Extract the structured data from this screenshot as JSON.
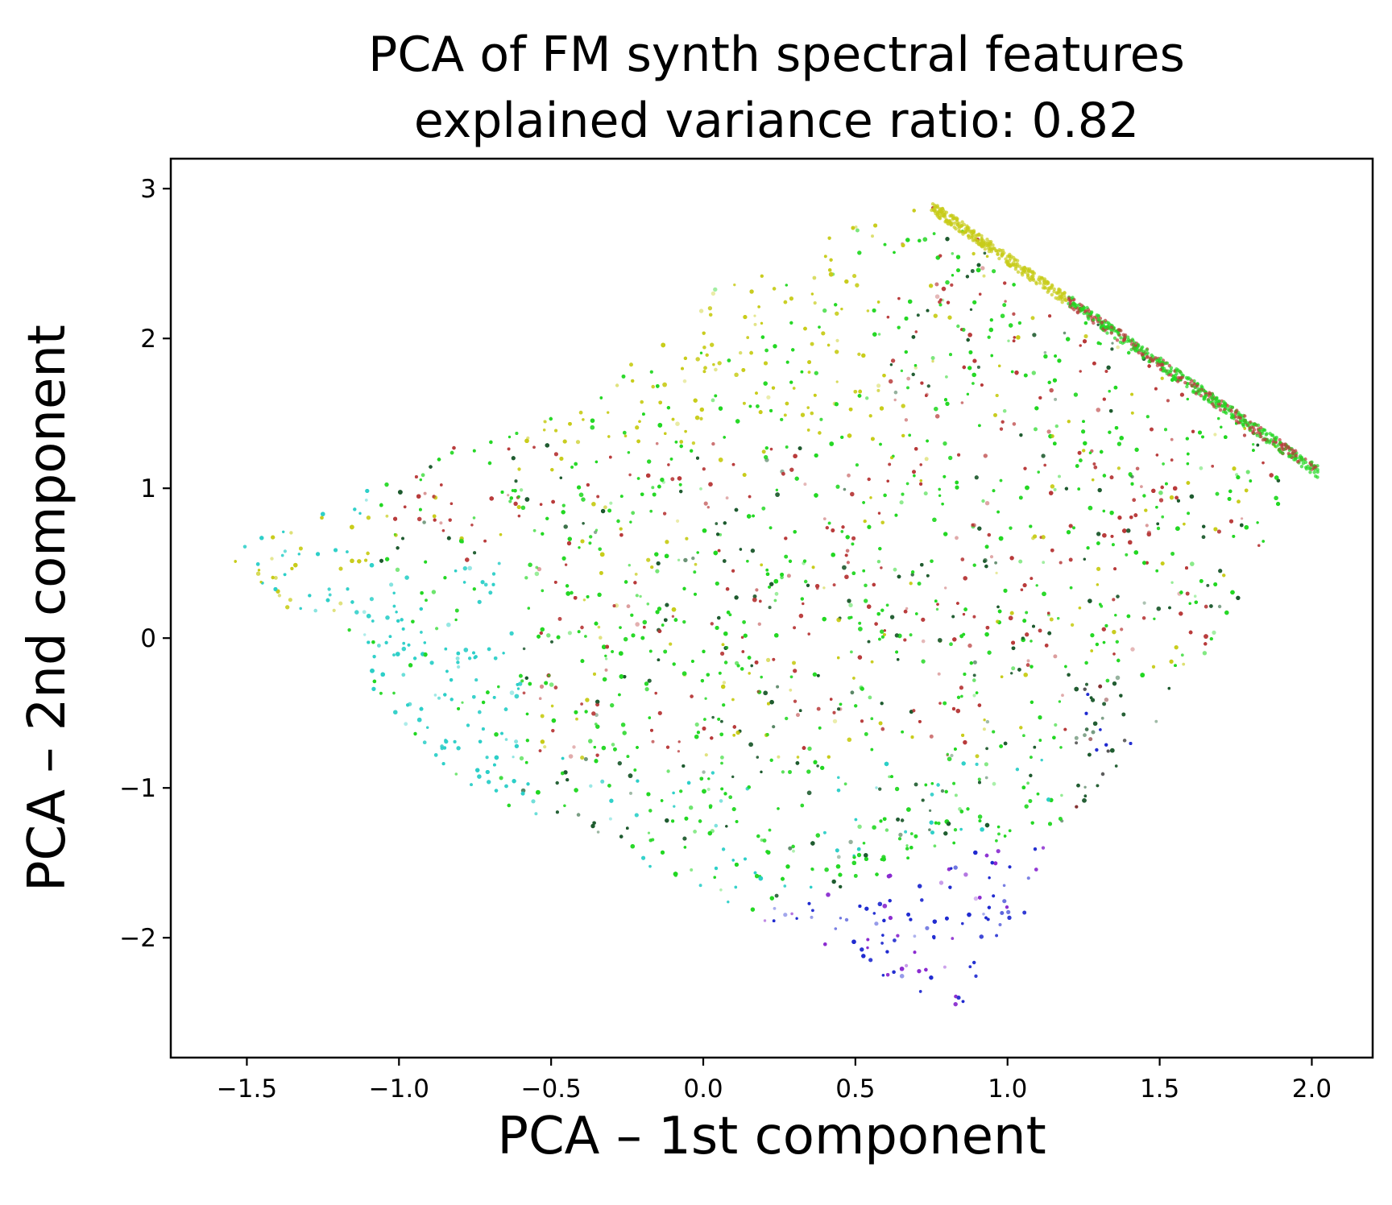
{
  "chart_data": {
    "type": "scatter",
    "title_lines": [
      "PCA of FM synth spectral features",
      "explained variance ratio: 0.82"
    ],
    "xlabel": "PCA – 1st component",
    "ylabel": "PCA – 2nd component",
    "xlim": [
      -1.75,
      2.2
    ],
    "ylim": [
      -2.8,
      3.2
    ],
    "xticks": [
      -1.5,
      -1.0,
      -0.5,
      0.0,
      0.5,
      1.0,
      1.5,
      2.0
    ],
    "xtick_labels": [
      "−1.5",
      "−1.0",
      "−0.5",
      "0.0",
      "0.5",
      "1.0",
      "1.5",
      "2.0"
    ],
    "yticks": [
      -2,
      -1,
      0,
      1,
      2,
      3
    ],
    "ytick_labels": [
      "−2",
      "−1",
      "0",
      "1",
      "2",
      "3"
    ],
    "grid": false,
    "legend": "none",
    "cloud_outline": [
      [
        -1.58,
        0.53
      ],
      [
        -1.45,
        0.7
      ],
      [
        -1.2,
        0.9
      ],
      [
        -1.0,
        1.1
      ],
      [
        -0.8,
        1.3
      ],
      [
        -0.4,
        1.6
      ],
      [
        -0.15,
        1.95
      ],
      [
        0.1,
        2.45
      ],
      [
        0.4,
        2.7
      ],
      [
        0.55,
        2.78
      ],
      [
        0.75,
        2.92
      ],
      [
        2.02,
        1.15
      ],
      [
        1.7,
        0.0
      ],
      [
        1.25,
        -1.2
      ],
      [
        0.85,
        -2.5
      ],
      [
        0.5,
        -2.2
      ],
      [
        -0.1,
        -1.6
      ],
      [
        -0.8,
        -1.0
      ],
      [
        -1.3,
        0.1
      ]
    ],
    "diagonal_band_start": [
      0.75,
      2.92
    ],
    "diagonal_band_end": [
      2.02,
      1.15
    ],
    "colors": {
      "yellow": "#c8cc1a",
      "green": "#22d722",
      "red": "#b83a3a",
      "dark_green": "#1d5a2e",
      "cyan": "#2ccfc8",
      "blue": "#1f2ad0",
      "purple": "#8a2ad0",
      "dark_red": "#7a1e1e",
      "gray": "#555555"
    }
  }
}
